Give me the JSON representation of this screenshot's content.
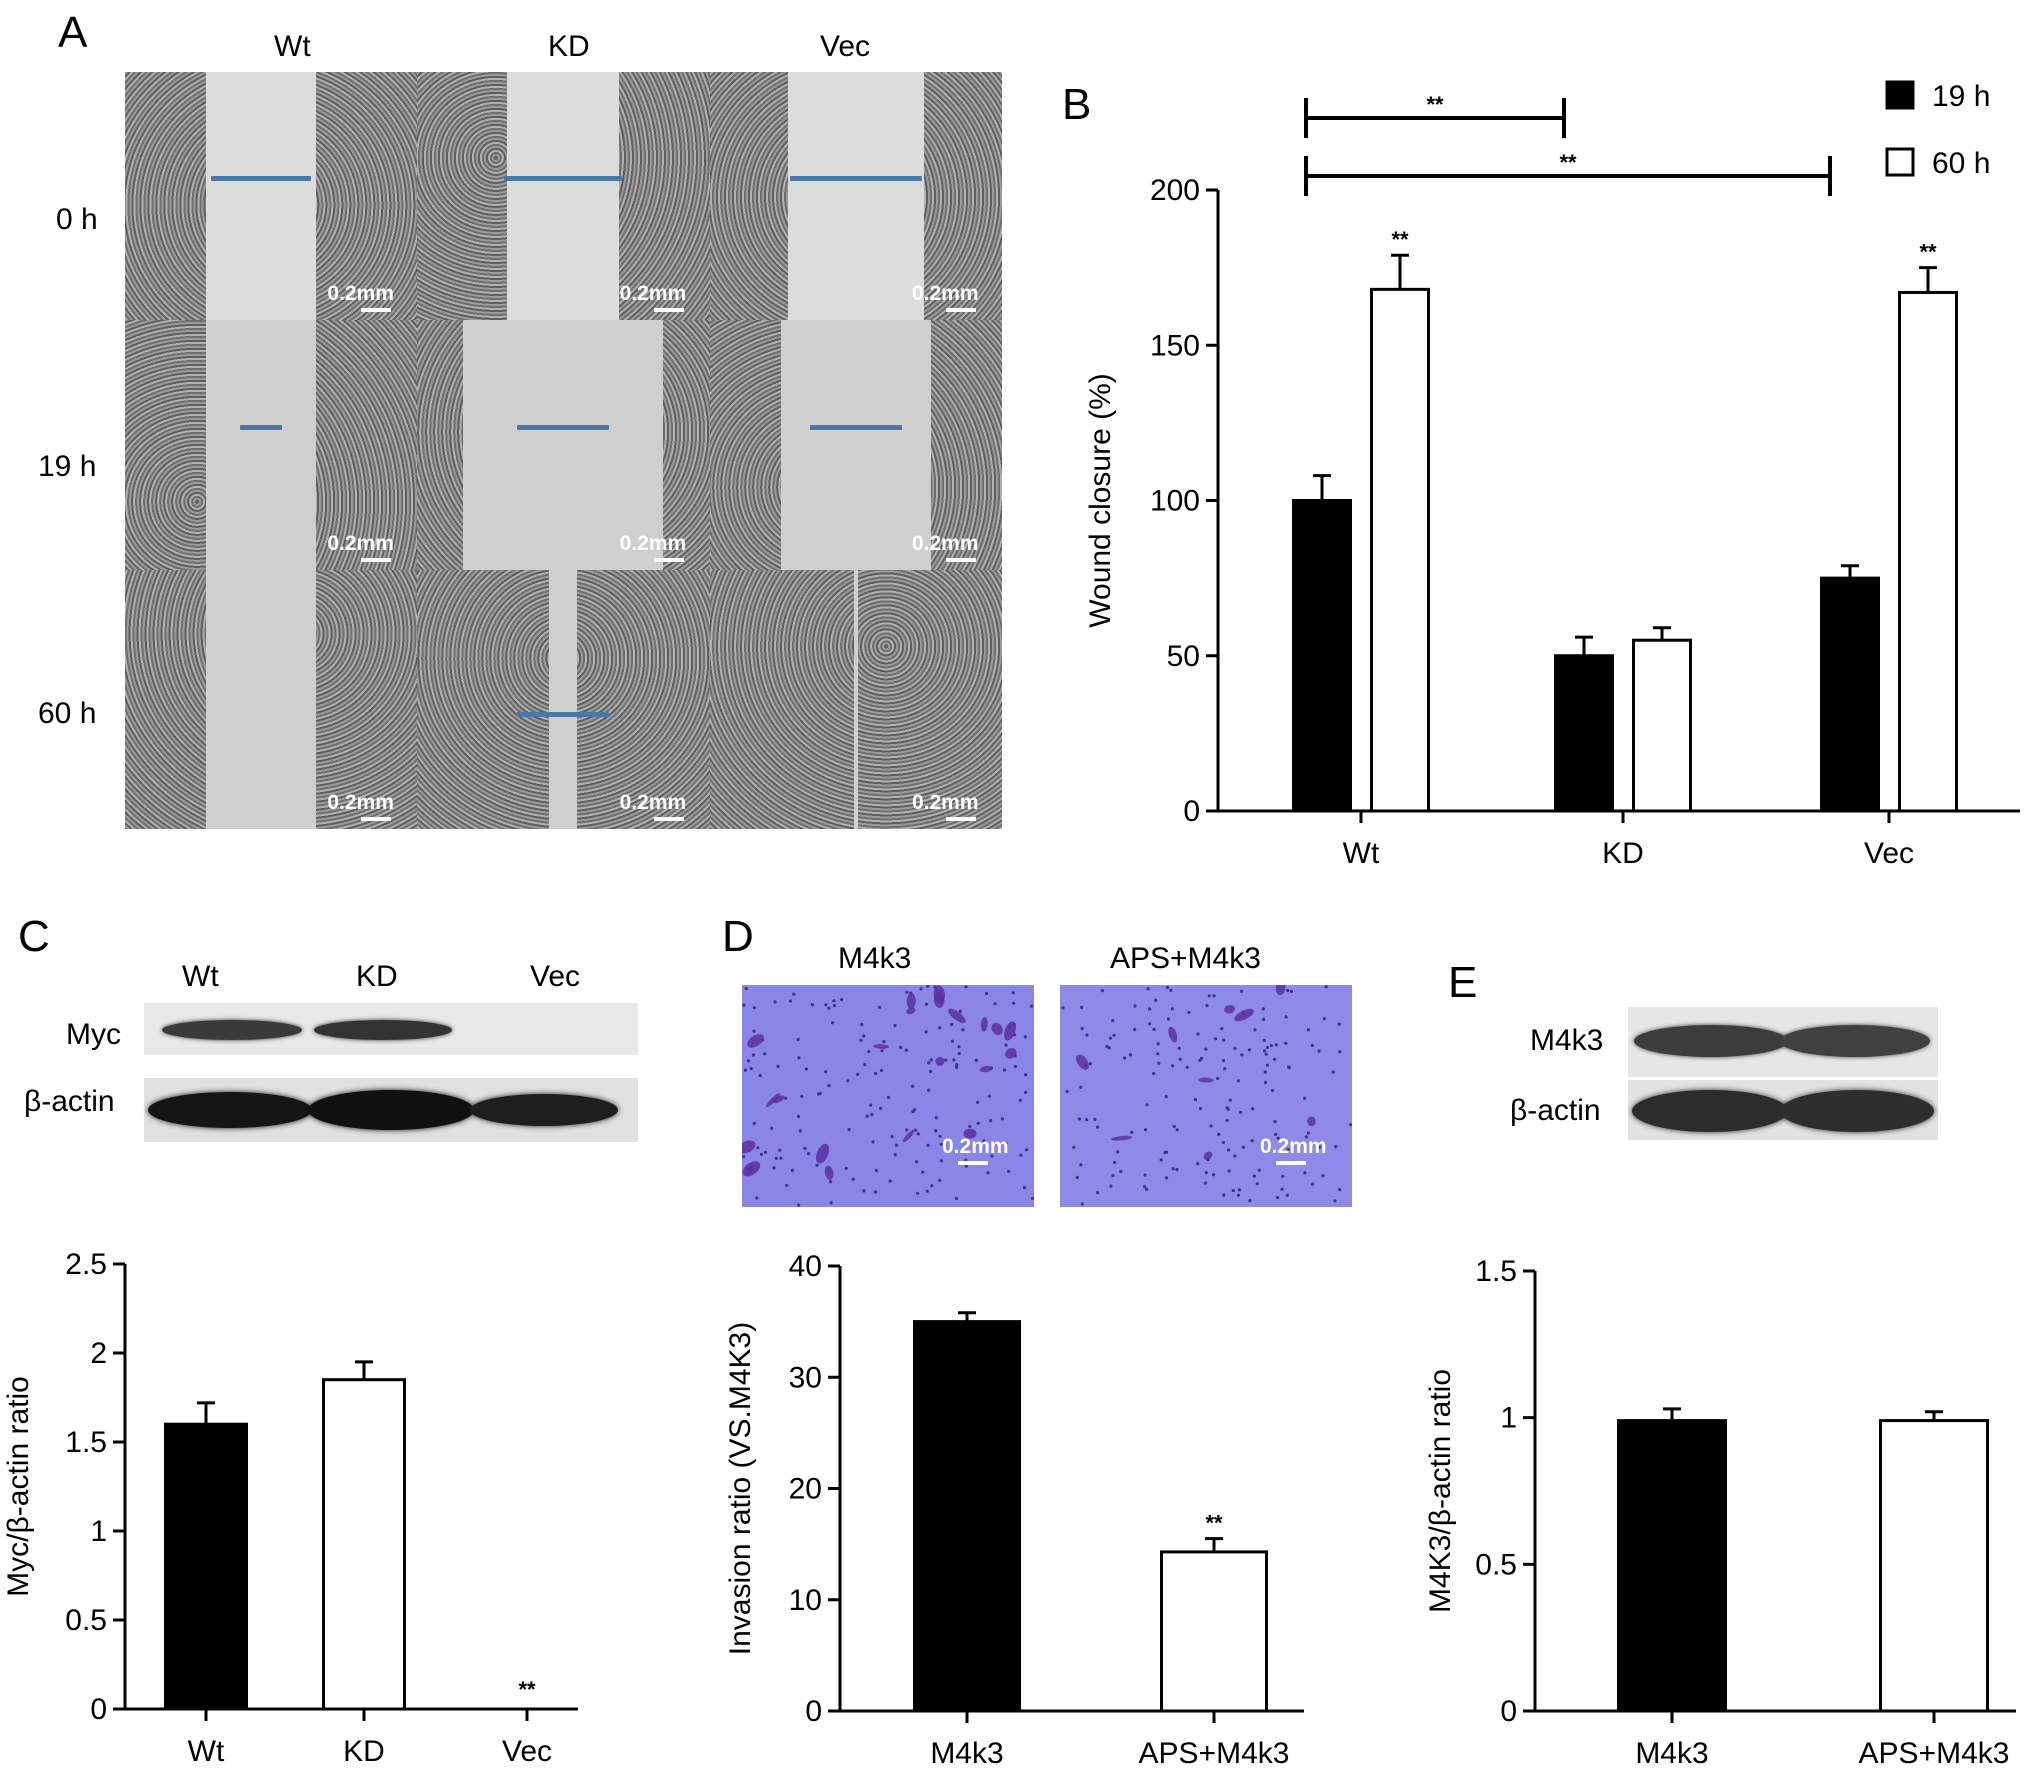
{
  "panelA": {
    "letter": "A",
    "columns": [
      "Wt",
      "KD",
      "Vec"
    ],
    "rows": [
      "0 h",
      "19 h",
      "60 h"
    ],
    "scale_label": "0.2mm"
  },
  "panelB": {
    "letter": "B"
  },
  "panelC": {
    "letter": "C",
    "lane_labels": [
      "Wt",
      "KD",
      "Vec"
    ],
    "row_labels": [
      "Myc",
      "β-actin"
    ]
  },
  "panelD": {
    "letter": "D",
    "image_labels": [
      "M4k3",
      "APS+M4k3"
    ],
    "scale_label": "0.2mm"
  },
  "panelE": {
    "letter": "E",
    "row_labels": [
      "M4k3",
      "β-actin"
    ]
  },
  "colors": {
    "bar_filled": "#000000",
    "bar_open": "#ffffff",
    "stain": "#8a86e6",
    "scratch_line": "#4a76a8"
  },
  "chart_data": [
    {
      "id": "B",
      "type": "bar",
      "categories": [
        "Wt",
        "KD",
        "Vec"
      ],
      "series": [
        {
          "name": "19 h",
          "fill": "filled",
          "values": [
            100,
            50,
            75
          ],
          "errors": [
            8,
            6,
            4
          ]
        },
        {
          "name": "60 h",
          "fill": "open",
          "values": [
            168,
            55,
            167
          ],
          "errors": [
            11,
            4,
            8
          ]
        }
      ],
      "ylabel": "Wound closure (%)",
      "ylim": [
        0,
        200
      ],
      "yticks": [
        0,
        50,
        100,
        150,
        200
      ],
      "legend_position": "top-right",
      "annotations": [
        {
          "text": "**",
          "target": "Wt 60 h"
        },
        {
          "text": "**",
          "target": "Vec 60 h"
        },
        {
          "text": "**",
          "bracket": [
            "Wt",
            "KD"
          ]
        },
        {
          "text": "**",
          "bracket": [
            "Wt",
            "Vec"
          ]
        }
      ]
    },
    {
      "id": "C",
      "type": "bar",
      "categories": [
        "Wt",
        "KD",
        "Vec"
      ],
      "fills": [
        "filled",
        "open",
        "filled"
      ],
      "values": [
        1.6,
        1.85,
        0
      ],
      "errors": [
        0.12,
        0.1,
        0
      ],
      "ylabel": "Myc/β-actin ratio",
      "ylim": [
        0,
        2.5
      ],
      "yticks": [
        0,
        0.5,
        1,
        1.5,
        2,
        2.5
      ],
      "annotations": [
        {
          "text": "**",
          "target": "Vec"
        }
      ]
    },
    {
      "id": "D",
      "type": "bar",
      "categories": [
        "M4k3",
        "APS+M4k3"
      ],
      "fills": [
        "filled",
        "open"
      ],
      "values": [
        35,
        14.3
      ],
      "errors": [
        0.8,
        1.2
      ],
      "ylabel": "Invasion ratio (VS.M4K3)",
      "ylim": [
        0,
        40
      ],
      "yticks": [
        0,
        10,
        20,
        30,
        40
      ],
      "annotations": [
        {
          "text": "**",
          "target": "APS+M4k3"
        }
      ]
    },
    {
      "id": "E",
      "type": "bar",
      "categories": [
        "M4k3",
        "APS+M4k3"
      ],
      "fills": [
        "filled",
        "open"
      ],
      "values": [
        0.99,
        0.99
      ],
      "errors": [
        0.04,
        0.03
      ],
      "ylabel": "M4K3/β-actin ratio",
      "ylim": [
        0,
        1.5
      ],
      "yticks": [
        0,
        0.5,
        1,
        1.5
      ],
      "annotations": []
    }
  ]
}
